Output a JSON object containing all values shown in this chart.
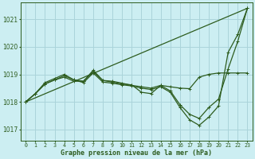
{
  "title": "Graphe pression niveau de la mer (hPa)",
  "bg_color": "#cceef2",
  "grid_color": "#aad4da",
  "line_color": "#2d5c1e",
  "ylim": [
    1016.6,
    1021.6
  ],
  "xlim": [
    -0.5,
    23.5
  ],
  "yticks": [
    1017,
    1018,
    1019,
    1020,
    1021
  ],
  "xtick_labels": [
    "0",
    "1",
    "2",
    "3",
    "4",
    "5",
    "6",
    "7",
    "8",
    "9",
    "10",
    "11",
    "12",
    "13",
    "14",
    "15",
    "16",
    "17",
    "18",
    "19",
    "20",
    "21",
    "22",
    "23"
  ],
  "line1_x": [
    0,
    1,
    2,
    3,
    4,
    5,
    6,
    7,
    8,
    9,
    10,
    11,
    12,
    13,
    14,
    15,
    16,
    17,
    18,
    19,
    20,
    21,
    22,
    23
  ],
  "line1_y": [
    1018.0,
    1018.3,
    1018.65,
    1018.8,
    1018.9,
    1018.75,
    1018.75,
    1019.1,
    1018.78,
    1018.75,
    1018.68,
    1018.6,
    1018.55,
    1018.5,
    1018.6,
    1018.55,
    1018.5,
    1018.48,
    1018.9,
    1019.0,
    1019.05,
    1019.05,
    1019.05,
    1019.05
  ],
  "line2_x": [
    0,
    1,
    2,
    3,
    4,
    5,
    6,
    7,
    8,
    9,
    10,
    11,
    12,
    13,
    14,
    15,
    16,
    17,
    18,
    19,
    20,
    21,
    22,
    23
  ],
  "line2_y": [
    1018.0,
    1018.3,
    1018.7,
    1018.85,
    1019.0,
    1018.8,
    1018.75,
    1019.15,
    1018.78,
    1018.72,
    1018.65,
    1018.62,
    1018.35,
    1018.3,
    1018.6,
    1018.4,
    1017.9,
    1017.55,
    1017.4,
    1017.8,
    1018.1,
    1019.2,
    1020.2,
    1021.4
  ],
  "line3_x": [
    0,
    1,
    2,
    3,
    4,
    5,
    6,
    7,
    8,
    9,
    10,
    11,
    12,
    13,
    14,
    15,
    16,
    17,
    18,
    19,
    20,
    21,
    22,
    23
  ],
  "line3_y": [
    1018.0,
    1018.3,
    1018.65,
    1018.8,
    1018.95,
    1018.8,
    1018.7,
    1019.05,
    1018.72,
    1018.68,
    1018.62,
    1018.58,
    1018.5,
    1018.45,
    1018.55,
    1018.35,
    1017.8,
    1017.35,
    1017.15,
    1017.45,
    1017.85,
    1019.8,
    1020.45,
    1021.4
  ],
  "trend_x": [
    0,
    23
  ],
  "trend_y": [
    1018.0,
    1021.4
  ]
}
